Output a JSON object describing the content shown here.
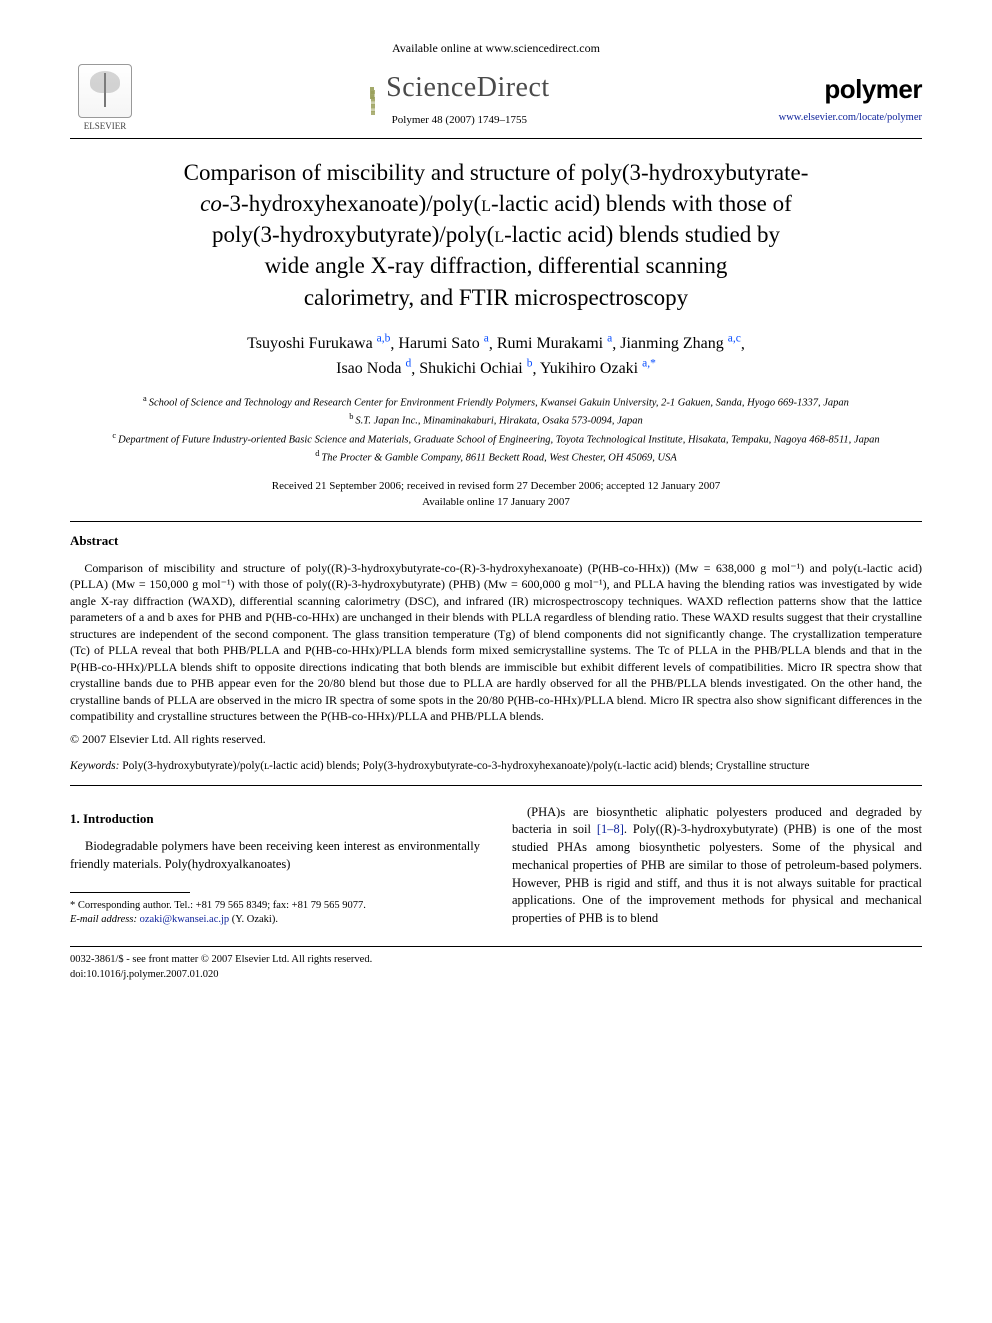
{
  "header": {
    "available_online": "Available online at www.sciencedirect.com",
    "sciencedirect_label": "ScienceDirect",
    "elsevier_label": "ELSEVIER",
    "journal_logo": "polymer",
    "citation": "Polymer 48 (2007) 1749–1755",
    "journal_url": "www.elsevier.com/locate/polymer"
  },
  "title_parts": {
    "l1": "Comparison of miscibility and structure of poly(3-hydroxybutyrate-",
    "l2_pre": "co",
    "l2_post": "-3-hydroxyhexanoate)/poly(",
    "l2_sc": "l",
    "l2_end": "-lactic acid) blends with those of",
    "l3_pre": "poly(3-hydroxybutyrate)/poly(",
    "l3_sc": "l",
    "l3_end": "-lactic acid) blends studied by",
    "l4": "wide angle X-ray diffraction, differential scanning",
    "l5": "calorimetry, and FTIR microspectroscopy"
  },
  "authors": [
    {
      "name": "Tsuyoshi Furukawa",
      "aff": "a,b"
    },
    {
      "name": "Harumi Sato",
      "aff": "a"
    },
    {
      "name": "Rumi Murakami",
      "aff": "a"
    },
    {
      "name": "Jianming Zhang",
      "aff": "a,c"
    },
    {
      "name": "Isao Noda",
      "aff": "d"
    },
    {
      "name": "Shukichi Ochiai",
      "aff": "b"
    },
    {
      "name": "Yukihiro Ozaki",
      "aff": "a,*"
    }
  ],
  "affiliations": {
    "a": "School of Science and Technology and Research Center for Environment Friendly Polymers, Kwansei Gakuin University, 2-1 Gakuen, Sanda, Hyogo 669-1337, Japan",
    "b": "S.T. Japan Inc., Minaminakaburi, Hirakata, Osaka 573-0094, Japan",
    "c": "Department of Future Industry-oriented Basic Science and Materials, Graduate School of Engineering, Toyota Technological Institute, Hisakata, Tempaku, Nagoya 468-8511, Japan",
    "d": "The Procter & Gamble Company, 8611 Beckett Road, West Chester, OH 45069, USA"
  },
  "dates": {
    "received": "Received 21 September 2006; received in revised form 27 December 2006; accepted 12 January 2007",
    "available": "Available online 17 January 2007"
  },
  "abstract": {
    "heading": "Abstract",
    "body": "Comparison of miscibility and structure of poly((R)-3-hydroxybutyrate-co-(R)-3-hydroxyhexanoate) (P(HB-co-HHx)) (Mw = 638,000 g mol⁻¹) and poly(ʟ-lactic acid) (PLLA) (Mw = 150,000 g mol⁻¹) with those of poly((R)-3-hydroxybutyrate) (PHB) (Mw = 600,000 g mol⁻¹), and PLLA having the blending ratios was investigated by wide angle X-ray diffraction (WAXD), differential scanning calorimetry (DSC), and infrared (IR) microspectroscopy techniques. WAXD reflection patterns show that the lattice parameters of a and b axes for PHB and P(HB-co-HHx) are unchanged in their blends with PLLA regardless of blending ratio. These WAXD results suggest that their crystalline structures are independent of the second component. The glass transition temperature (Tg) of blend components did not significantly change. The crystallization temperature (Tc) of PLLA reveal that both PHB/PLLA and P(HB-co-HHx)/PLLA blends form mixed semicrystalline systems. The Tc of PLLA in the PHB/PLLA blends and that in the P(HB-co-HHx)/PLLA blends shift to opposite directions indicating that both blends are immiscible but exhibit different levels of compatibilities. Micro IR spectra show that crystalline bands due to PHB appear even for the 20/80 blend but those due to PLLA are hardly observed for all the PHB/PLLA blends investigated. On the other hand, the crystalline bands of PLLA are observed in the micro IR spectra of some spots in the 20/80 P(HB-co-HHx)/PLLA blend. Micro IR spectra also show significant differences in the compatibility and crystalline structures between the P(HB-co-HHx)/PLLA and PHB/PLLA blends.",
    "copyright": "© 2007 Elsevier Ltd. All rights reserved."
  },
  "keywords": {
    "label": "Keywords:",
    "text": "Poly(3-hydroxybutyrate)/poly(ʟ-lactic acid) blends; Poly(3-hydroxybutyrate-co-3-hydroxyhexanoate)/poly(ʟ-lactic acid) blends; Crystalline structure"
  },
  "intro": {
    "heading": "1. Introduction",
    "col1": "Biodegradable polymers have been receiving keen interest as environmentally friendly materials. Poly(hydroxyalkanoates)",
    "col2_pre": "(PHA)s are biosynthetic aliphatic polyesters produced and degraded by bacteria in soil ",
    "col2_ref": "[1–8]",
    "col2_post": ". Poly((R)-3-hydroxybutyrate) (PHB) is one of the most studied PHAs among biosynthetic polyesters. Some of the physical and mechanical properties of PHB are similar to those of petroleum-based polymers. However, PHB is rigid and stiff, and thus it is not always suitable for practical applications. One of the improvement methods for physical and mechanical properties of PHB is to blend"
  },
  "footnote": {
    "corr": "* Corresponding author. Tel.: +81 79 565 8349; fax: +81 79 565 9077.",
    "email_label": "E-mail address:",
    "email": "ozaki@kwansei.ac.jp",
    "email_who": "(Y. Ozaki)."
  },
  "legal": {
    "line1": "0032-3861/$ - see front matter © 2007 Elsevier Ltd. All rights reserved.",
    "line2": "doi:10.1016/j.polymer.2007.01.020"
  },
  "colors": {
    "link": "#0a1f99",
    "text": "#000000",
    "bg": "#ffffff"
  }
}
